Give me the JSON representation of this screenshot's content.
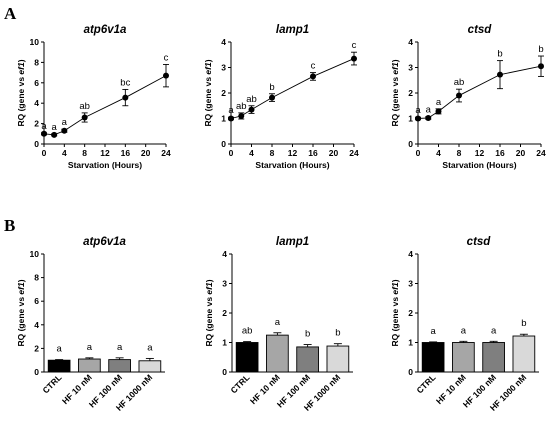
{
  "panels": {
    "A": "A",
    "B": "B"
  },
  "chart_data": [
    {
      "panel": "A",
      "type": "line",
      "title": "atp6v1a",
      "xlabel": "Starvation (Hours)",
      "ylabel_prefix": "RQ (gene vs ",
      "ylabel_gene": "ef1",
      "ylabel_suffix": ")",
      "x": [
        0,
        2,
        4,
        8,
        16,
        24
      ],
      "y": [
        1.0,
        0.9,
        1.3,
        2.6,
        4.55,
        6.7
      ],
      "err": [
        0.1,
        0.1,
        0.15,
        0.45,
        0.8,
        1.1
      ],
      "labels": [
        "a",
        "a",
        "a",
        "ab",
        "bc",
        "c"
      ],
      "xlim": [
        0,
        24
      ],
      "xticks": [
        0,
        4,
        8,
        12,
        16,
        20,
        24
      ],
      "ylim": [
        0,
        10
      ],
      "yticks": [
        0,
        2,
        4,
        6,
        8,
        10
      ]
    },
    {
      "panel": "A",
      "type": "line",
      "title": "lamp1",
      "xlabel": "Starvation (Hours)",
      "ylabel_prefix": "RQ (gene vs ",
      "ylabel_gene": "ef1",
      "ylabel_suffix": ")",
      "x": [
        0,
        2,
        4,
        8,
        16,
        24
      ],
      "y": [
        1.0,
        1.1,
        1.35,
        1.82,
        2.65,
        3.35
      ],
      "err": [
        0.05,
        0.12,
        0.15,
        0.15,
        0.15,
        0.25
      ],
      "labels": [
        "a",
        "ab",
        "ab",
        "b",
        "c",
        "c"
      ],
      "xlim": [
        0,
        24
      ],
      "xticks": [
        0,
        4,
        8,
        12,
        16,
        20,
        24
      ],
      "ylim": [
        0,
        4
      ],
      "yticks": [
        0,
        1,
        2,
        3,
        4
      ]
    },
    {
      "panel": "A",
      "type": "line",
      "title": "ctsd",
      "xlabel": "Starvation (Hours)",
      "ylabel_prefix": "RQ (gene vs ",
      "ylabel_gene": "ef1",
      "ylabel_suffix": ")",
      "x": [
        0,
        2,
        4,
        8,
        16,
        24
      ],
      "y": [
        1.0,
        1.02,
        1.28,
        1.9,
        2.72,
        3.05
      ],
      "err": [
        0.05,
        0.05,
        0.1,
        0.25,
        0.55,
        0.4
      ],
      "labels": [
        "a",
        "a",
        "a",
        "ab",
        "b",
        "b"
      ],
      "xlim": [
        0,
        24
      ],
      "xticks": [
        0,
        4,
        8,
        12,
        16,
        20,
        24
      ],
      "ylim": [
        0,
        4
      ],
      "yticks": [
        0,
        1,
        2,
        3,
        4
      ]
    },
    {
      "panel": "B",
      "type": "bar",
      "title": "atp6v1a",
      "ylabel_prefix": "RQ (gene vs ",
      "ylabel_gene": "ef1",
      "ylabel_suffix": ")",
      "categories": [
        "CTRL",
        "HF 10 nM",
        "HF 100 nM",
        "HF 1000 nM"
      ],
      "values": [
        1.0,
        1.1,
        1.05,
        0.95
      ],
      "err": [
        0.05,
        0.1,
        0.15,
        0.2
      ],
      "labels": [
        "a",
        "a",
        "a",
        "a"
      ],
      "colors": [
        "#000000",
        "#a6a6a6",
        "#7f7f7f",
        "#d9d9d9"
      ],
      "ylim": [
        0,
        10
      ],
      "yticks": [
        0,
        2,
        4,
        6,
        8,
        10
      ]
    },
    {
      "panel": "B",
      "type": "bar",
      "title": "lamp1",
      "ylabel_prefix": "RQ (gene vs ",
      "ylabel_gene": "ef1",
      "ylabel_suffix": ")",
      "categories": [
        "CTRL",
        "HF 10 nM",
        "HF 100 nM",
        "HF 1000 nM"
      ],
      "values": [
        1.0,
        1.25,
        0.85,
        0.88
      ],
      "err": [
        0.03,
        0.08,
        0.08,
        0.08
      ],
      "labels": [
        "ab",
        "a",
        "b",
        "b"
      ],
      "colors": [
        "#000000",
        "#a6a6a6",
        "#7f7f7f",
        "#d9d9d9"
      ],
      "ylim": [
        0,
        4
      ],
      "yticks": [
        0,
        1,
        2,
        3,
        4
      ]
    },
    {
      "panel": "B",
      "type": "bar",
      "title": "ctsd",
      "ylabel_prefix": "RQ (gene vs ",
      "ylabel_gene": "ef1",
      "ylabel_suffix": ")",
      "categories": [
        "CTRL",
        "HF 10 nM",
        "HF 100 nM",
        "HF 1000 nM"
      ],
      "values": [
        1.0,
        1.0,
        1.0,
        1.22
      ],
      "err": [
        0.02,
        0.04,
        0.04,
        0.06
      ],
      "labels": [
        "a",
        "a",
        "a",
        "b"
      ],
      "colors": [
        "#000000",
        "#a6a6a6",
        "#7f7f7f",
        "#d9d9d9"
      ],
      "ylim": [
        0,
        4
      ],
      "yticks": [
        0,
        1,
        2,
        3,
        4
      ]
    }
  ]
}
